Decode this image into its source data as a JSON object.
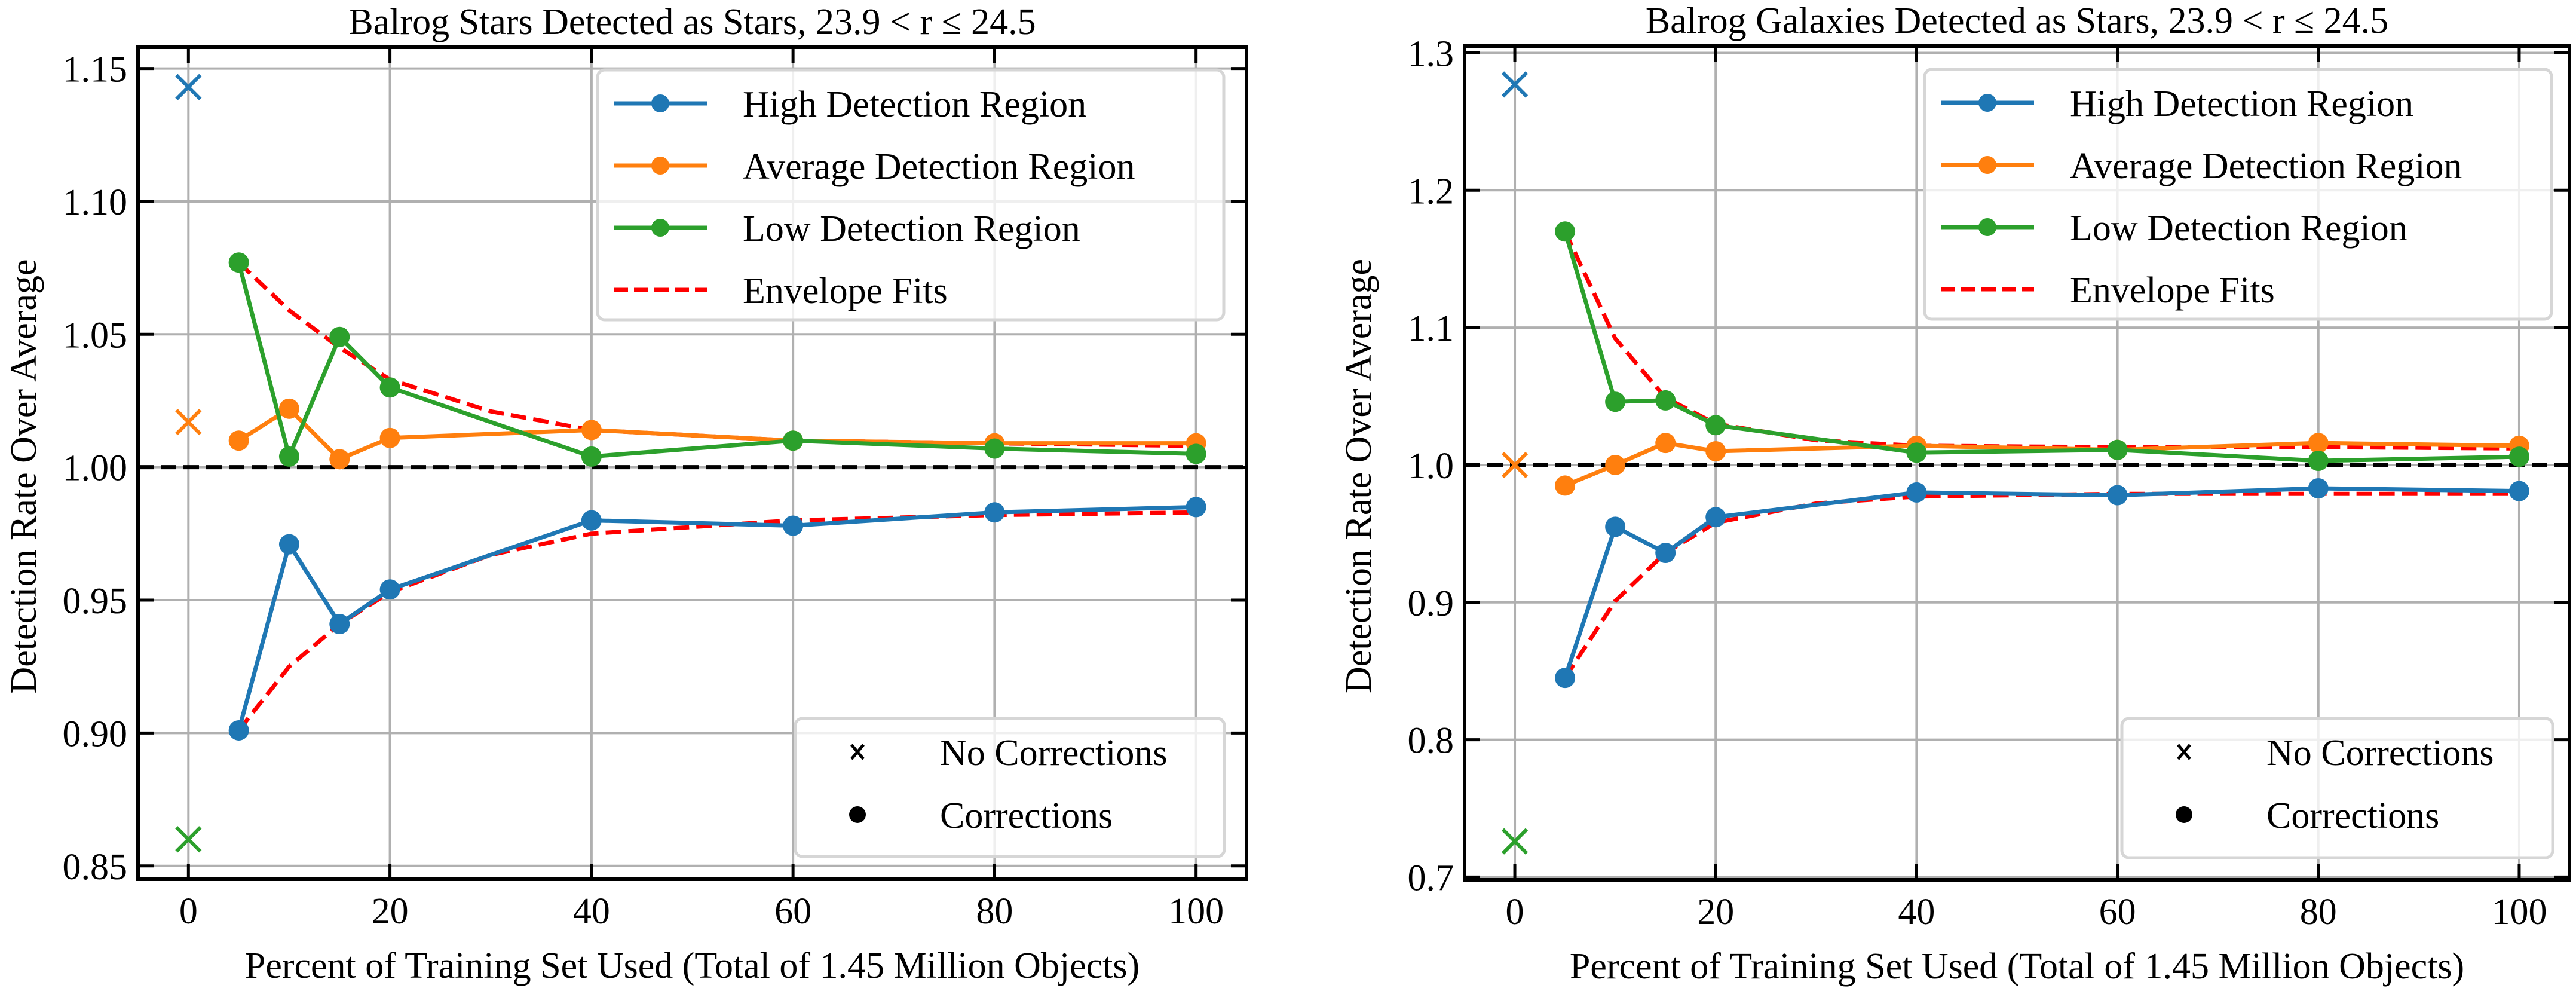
{
  "figure": {
    "panels": 2
  },
  "chart_data": [
    {
      "type": "line",
      "title": "Balrog Stars Detected as Stars, 23.9 < r ≤ 24.5",
      "xlabel": "Percent of Training Set Used (Total of 1.45 Million Objects)",
      "ylabel": "Detection Rate Over Average",
      "xlim": [
        -5,
        105
      ],
      "ylim": [
        0.845,
        1.158
      ],
      "xticks": [
        0,
        20,
        40,
        60,
        80,
        100
      ],
      "xtick_labels": [
        "0",
        "20",
        "40",
        "60",
        "80",
        "100"
      ],
      "yticks": [
        0.85,
        0.9,
        0.95,
        1.0,
        1.05,
        1.1,
        1.15
      ],
      "ytick_labels": [
        "0.85",
        "0.90",
        "0.95",
        "1.00",
        "1.05",
        "1.10",
        "1.15"
      ],
      "grid": true,
      "reference_line": {
        "y": 1.0,
        "style": "dashed",
        "color": "#000000"
      },
      "x": [
        5,
        10,
        15,
        20,
        40,
        60,
        80,
        100
      ],
      "series": [
        {
          "name": "High Detection Region",
          "color": "#1f77b4",
          "values": [
            0.901,
            0.971,
            0.941,
            0.954,
            0.98,
            0.978,
            0.983,
            0.985
          ],
          "no_correction_value": 1.143
        },
        {
          "name": "Average Detection Region",
          "color": "#ff7f0e",
          "values": [
            1.01,
            1.022,
            1.003,
            1.011,
            1.014,
            1.01,
            1.009,
            1.009
          ],
          "no_correction_value": 1.017
        },
        {
          "name": "Low Detection Region",
          "color": "#2ca02c",
          "values": [
            1.077,
            1.004,
            1.049,
            1.03,
            1.004,
            1.01,
            1.007,
            1.005
          ],
          "no_correction_value": 0.86
        }
      ],
      "envelope_fits": {
        "name": "Envelope Fits",
        "color": "#ff0000",
        "x": [
          5,
          10,
          15,
          20,
          30,
          40,
          60,
          80,
          100
        ],
        "upper": [
          1.077,
          1.059,
          1.045,
          1.033,
          1.021,
          1.014,
          1.01,
          1.009,
          1.008
        ],
        "lower": [
          0.901,
          0.925,
          0.941,
          0.953,
          0.967,
          0.975,
          0.98,
          0.982,
          0.983
        ]
      },
      "legend_lines": {
        "placement": "top-right",
        "entries": [
          "High Detection Region",
          "Average Detection Region",
          "Low Detection Region",
          "Envelope Fits"
        ]
      },
      "legend_markers": {
        "placement": "bottom-right",
        "entries": [
          {
            "marker": "x",
            "label": "No Corrections"
          },
          {
            "marker": "o",
            "label": "Corrections"
          }
        ]
      }
    },
    {
      "type": "line",
      "title": "Balrog Galaxies Detected as Stars, 23.9 < r ≤ 24.5",
      "xlabel": "Percent of Training Set Used (Total of 1.45 Million Objects)",
      "ylabel": "Detection Rate Over Average",
      "xlim": [
        -5,
        105
      ],
      "ylim": [
        0.698,
        1.305
      ],
      "xticks": [
        0,
        20,
        40,
        60,
        80,
        100
      ],
      "xtick_labels": [
        "0",
        "20",
        "40",
        "60",
        "80",
        "100"
      ],
      "yticks": [
        0.7,
        0.8,
        0.9,
        1.0,
        1.1,
        1.2,
        1.3
      ],
      "ytick_labels": [
        "0.7",
        "0.8",
        "0.9",
        "1.0",
        "1.1",
        "1.2",
        "1.3"
      ],
      "grid": true,
      "reference_line": {
        "y": 1.0,
        "style": "dashed",
        "color": "#000000"
      },
      "x": [
        5,
        10,
        15,
        20,
        40,
        60,
        80,
        100
      ],
      "series": [
        {
          "name": "High Detection Region",
          "color": "#1f77b4",
          "values": [
            0.845,
            0.955,
            0.936,
            0.962,
            0.98,
            0.978,
            0.983,
            0.981
          ],
          "no_correction_value": 1.277
        },
        {
          "name": "Average Detection Region",
          "color": "#ff7f0e",
          "values": [
            0.985,
            1.0,
            1.016,
            1.01,
            1.014,
            1.011,
            1.016,
            1.014
          ],
          "no_correction_value": 1.0
        },
        {
          "name": "Low Detection Region",
          "color": "#2ca02c",
          "values": [
            1.17,
            1.046,
            1.047,
            1.029,
            1.009,
            1.011,
            1.003,
            1.006
          ],
          "no_correction_value": 0.726
        }
      ],
      "envelope_fits": {
        "name": "Envelope Fits",
        "color": "#ff0000",
        "x": [
          5,
          10,
          15,
          20,
          30,
          40,
          60,
          80,
          100
        ],
        "upper": [
          1.17,
          1.092,
          1.049,
          1.03,
          1.018,
          1.014,
          1.013,
          1.013,
          1.012
        ],
        "lower": [
          0.845,
          0.901,
          0.936,
          0.958,
          0.972,
          0.977,
          0.979,
          0.979,
          0.979
        ]
      },
      "legend_lines": {
        "placement": "top-right",
        "entries": [
          "High Detection Region",
          "Average Detection Region",
          "Low Detection Region",
          "Envelope Fits"
        ]
      },
      "legend_markers": {
        "placement": "bottom-right",
        "entries": [
          {
            "marker": "x",
            "label": "No Corrections"
          },
          {
            "marker": "o",
            "label": "Corrections"
          }
        ]
      }
    }
  ]
}
